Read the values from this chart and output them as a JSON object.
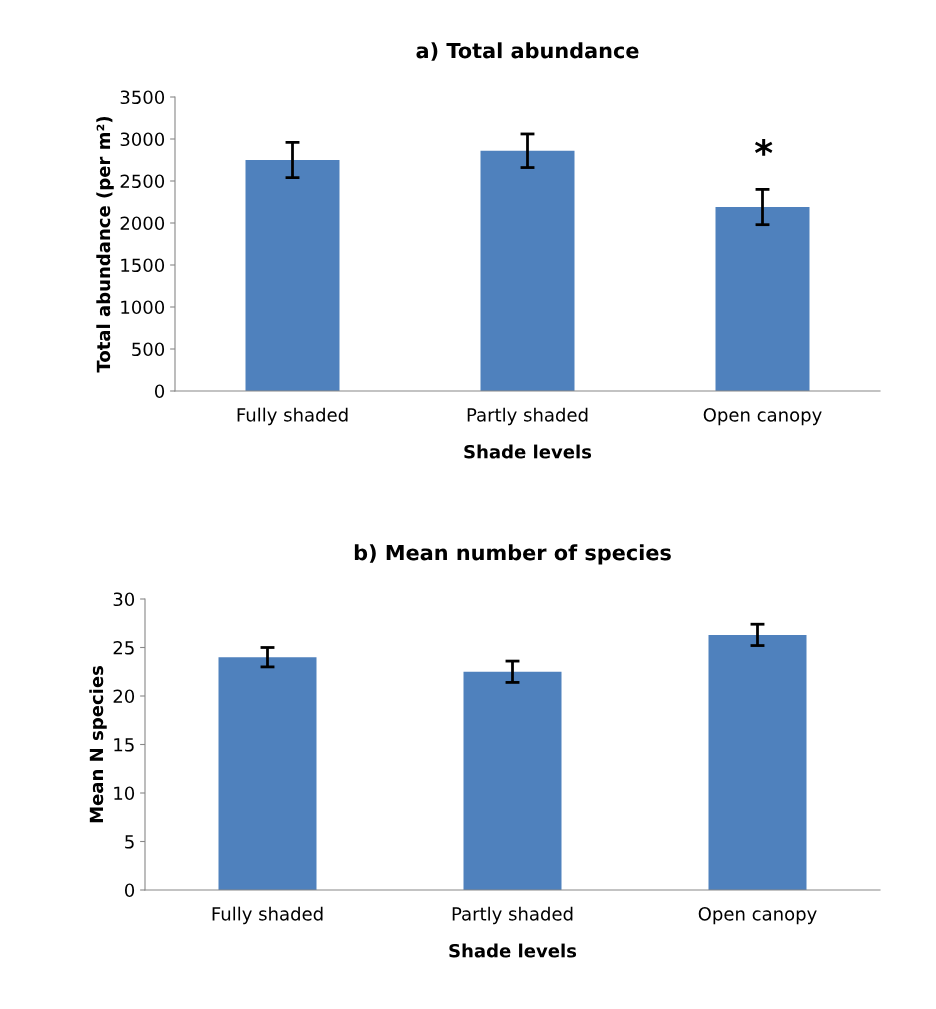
{
  "chart_data": [
    {
      "type": "bar",
      "title": "a) Total abundance",
      "xlabel": "Shade levels",
      "ylabel": "Total abundance (per m²)",
      "categories": [
        "Fully shaded",
        "Partly shaded",
        "Open canopy"
      ],
      "values": [
        2750,
        2860,
        2190
      ],
      "errors": [
        210,
        200,
        210
      ],
      "color": "#4f81bd",
      "ylim": [
        0,
        3500
      ],
      "yticks": [
        0,
        500,
        1000,
        1500,
        2000,
        2500,
        3000,
        3500
      ],
      "grid": false,
      "annotations": [
        "*"
      ]
    },
    {
      "type": "bar",
      "title": "b) Mean number of species",
      "xlabel": "Shade levels",
      "ylabel": "Mean N species",
      "categories": [
        "Fully shaded",
        "Partly shaded",
        "Open canopy"
      ],
      "values": [
        24.0,
        22.5,
        26.3
      ],
      "errors": [
        1.0,
        1.1,
        1.1
      ],
      "color": "#4f81bd",
      "ylim": [
        0,
        30
      ],
      "yticks": [
        0,
        5,
        10,
        15,
        20,
        25,
        30
      ],
      "grid": false
    }
  ]
}
